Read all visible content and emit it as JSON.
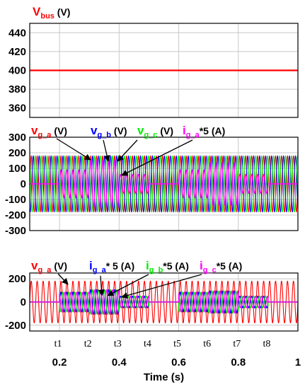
{
  "colors": {
    "red": "#ff0000",
    "blue": "#0000ff",
    "green": "#00ee00",
    "magenta": "#ff00ff",
    "black": "#000000",
    "grid": "#c8c8c8"
  },
  "chart_data": [
    {
      "type": "line",
      "panel": "top",
      "ylim": [
        350,
        450
      ],
      "yticks": [
        360,
        380,
        400,
        420,
        440
      ],
      "xlim": [
        0.1,
        1.0
      ],
      "grid": true,
      "labels": [
        {
          "text": "V",
          "sub": "bus",
          "unit": " (V)",
          "color": "red"
        }
      ],
      "series": [
        {
          "color": "red",
          "x": [
            0.1,
            1.0
          ],
          "values": [
            400,
            400
          ]
        }
      ]
    },
    {
      "type": "line",
      "panel": "middle",
      "ylim": [
        -300,
        300
      ],
      "yticks": [
        300,
        200,
        100,
        0,
        -100,
        -200,
        -300
      ],
      "xlim": [
        0.1,
        1.0
      ],
      "grid": true,
      "labels": [
        {
          "text": "v",
          "sub": "g_a",
          "unit": " (V)",
          "color": "red"
        },
        {
          "text": "v",
          "sub": "g_b",
          "unit": " (V)",
          "color": "blue"
        },
        {
          "text": "v",
          "sub": "g_c",
          "unit": " (V)",
          "color": "green"
        },
        {
          "text": "i",
          "sub": "g_a",
          "unit": "*5  (A)",
          "color": "magenta"
        }
      ],
      "series": [
        {
          "color": "red",
          "kind": "voltage",
          "amplitude": 180,
          "frequency_hz": 50,
          "phase_deg": 0
        },
        {
          "color": "blue",
          "kind": "voltage",
          "amplitude": 180,
          "frequency_hz": 50,
          "phase_deg": -120
        },
        {
          "color": "green",
          "kind": "voltage",
          "amplitude": 180,
          "frequency_hz": 50,
          "phase_deg": 120
        },
        {
          "color": "magenta",
          "kind": "current",
          "frequency_hz": 50,
          "phase_deg": 0,
          "envelope": [
            [
              0.1,
              0
            ],
            [
              0.2,
              0
            ],
            [
              0.2,
              90
            ],
            [
              0.3,
              90
            ],
            [
              0.3,
              150
            ],
            [
              0.4,
              150
            ],
            [
              0.4,
              60
            ],
            [
              0.5,
              60
            ],
            [
              0.5,
              0
            ],
            [
              0.6,
              0
            ],
            [
              0.6,
              90
            ],
            [
              0.7,
              90
            ],
            [
              0.7,
              135
            ],
            [
              0.8,
              135
            ],
            [
              0.8,
              60
            ],
            [
              0.9,
              60
            ],
            [
              0.9,
              0
            ],
            [
              1.0,
              0
            ]
          ]
        }
      ]
    },
    {
      "type": "line",
      "panel": "bottom",
      "ylim": [
        -250,
        250
      ],
      "yticks": [
        200,
        0,
        -200
      ],
      "xlim": [
        0.1,
        1.0
      ],
      "xticks": [
        0.2,
        0.4,
        0.6,
        0.8,
        1
      ],
      "xticklabels": [
        "0.2",
        "0.4",
        "0.6",
        "0.8",
        "1"
      ],
      "xlabel": "Time (s)",
      "grid": true,
      "labels": [
        {
          "text": "v",
          "sub": "g_a",
          "unit": " (V)",
          "color": "red"
        },
        {
          "text": "i",
          "sub": "g_a",
          "unit": "* 5  (A)",
          "color": "blue"
        },
        {
          "text": "i",
          "sub": "g_b",
          "unit": "*5  (A)",
          "color": "green"
        },
        {
          "text": "i",
          "sub": "g_c",
          "unit": "*5  (A)",
          "color": "magenta"
        }
      ],
      "time_markers": [
        {
          "text": "t1",
          "x": 0.2
        },
        {
          "text": "t2",
          "x": 0.3
        },
        {
          "text": "t3",
          "x": 0.4
        },
        {
          "text": "t4",
          "x": 0.5
        },
        {
          "text": "t5",
          "x": 0.6
        },
        {
          "text": "t6",
          "x": 0.7
        },
        {
          "text": "t7",
          "x": 0.8
        },
        {
          "text": "t8",
          "x": 0.9
        }
      ],
      "series": [
        {
          "color": "red",
          "kind": "voltage",
          "amplitude": 180,
          "frequency_hz": 50,
          "phase_deg": 0
        },
        {
          "color": "blue",
          "kind": "current",
          "frequency_hz": 50,
          "phase_deg": 0,
          "envelope": [
            [
              0.1,
              0
            ],
            [
              0.2,
              0
            ],
            [
              0.2,
              85
            ],
            [
              0.3,
              85
            ],
            [
              0.3,
              105
            ],
            [
              0.4,
              105
            ],
            [
              0.4,
              50
            ],
            [
              0.5,
              50
            ],
            [
              0.5,
              0
            ],
            [
              0.6,
              0
            ],
            [
              0.6,
              85
            ],
            [
              0.7,
              85
            ],
            [
              0.7,
              95
            ],
            [
              0.8,
              95
            ],
            [
              0.8,
              50
            ],
            [
              0.9,
              50
            ],
            [
              0.9,
              0
            ],
            [
              1.0,
              0
            ]
          ]
        },
        {
          "color": "green",
          "kind": "current",
          "frequency_hz": 50,
          "phase_deg": -120,
          "envelope": [
            [
              0.1,
              0
            ],
            [
              0.2,
              0
            ],
            [
              0.2,
              85
            ],
            [
              0.3,
              85
            ],
            [
              0.3,
              105
            ],
            [
              0.4,
              105
            ],
            [
              0.4,
              50
            ],
            [
              0.5,
              50
            ],
            [
              0.5,
              0
            ],
            [
              0.6,
              0
            ],
            [
              0.6,
              85
            ],
            [
              0.7,
              85
            ],
            [
              0.7,
              95
            ],
            [
              0.8,
              95
            ],
            [
              0.8,
              50
            ],
            [
              0.9,
              50
            ],
            [
              0.9,
              0
            ],
            [
              1.0,
              0
            ]
          ]
        },
        {
          "color": "magenta",
          "kind": "current",
          "frequency_hz": 50,
          "phase_deg": 120,
          "envelope": [
            [
              0.1,
              0
            ],
            [
              0.2,
              0
            ],
            [
              0.2,
              85
            ],
            [
              0.3,
              85
            ],
            [
              0.3,
              105
            ],
            [
              0.4,
              105
            ],
            [
              0.4,
              50
            ],
            [
              0.5,
              50
            ],
            [
              0.5,
              0
            ],
            [
              0.6,
              0
            ],
            [
              0.6,
              85
            ],
            [
              0.7,
              85
            ],
            [
              0.7,
              95
            ],
            [
              0.8,
              95
            ],
            [
              0.8,
              50
            ],
            [
              0.9,
              50
            ],
            [
              0.9,
              0
            ],
            [
              1.0,
              0
            ]
          ]
        }
      ]
    }
  ]
}
